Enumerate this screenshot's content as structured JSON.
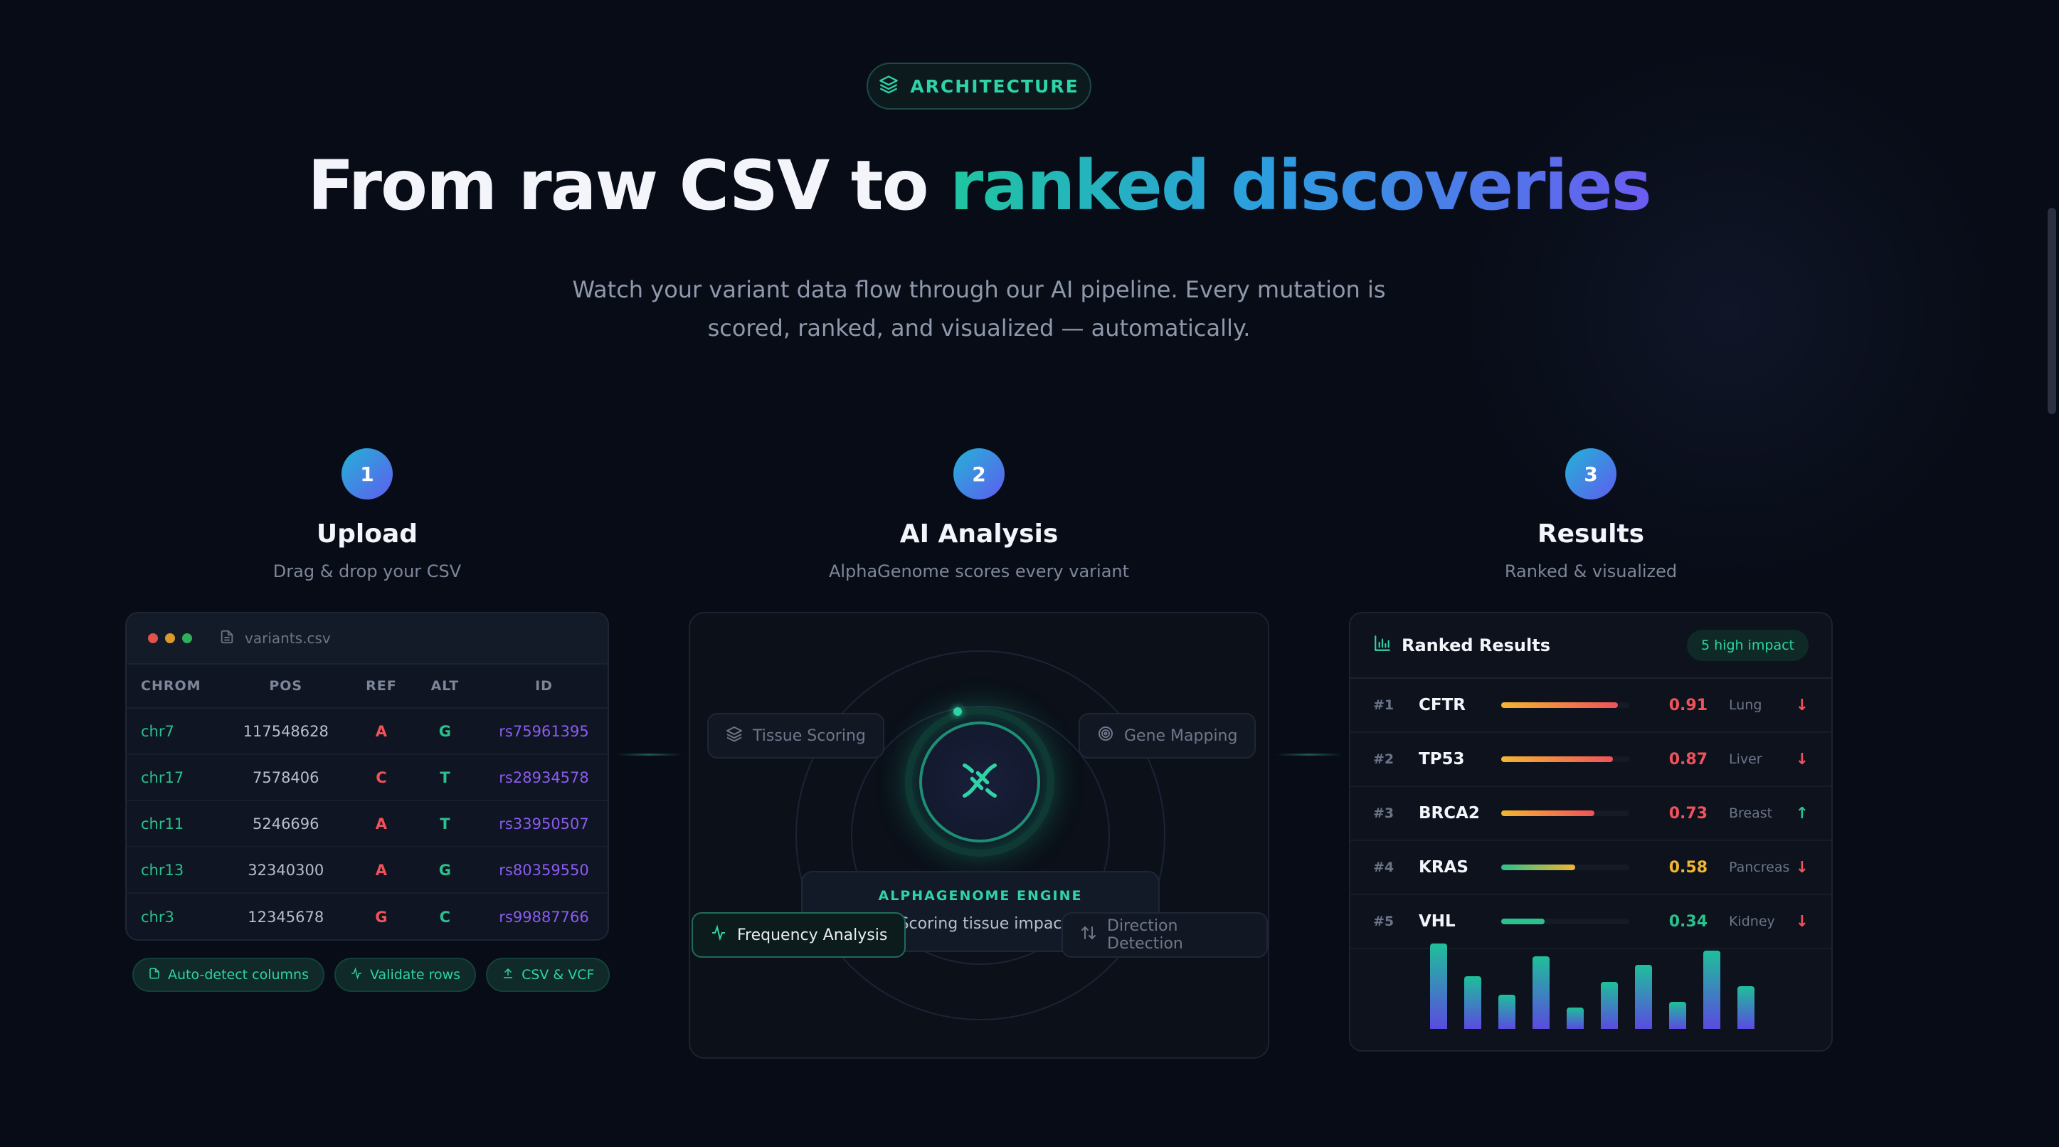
{
  "badge": {
    "icon": "layers-icon",
    "label": "ARCHITECTURE"
  },
  "hero": {
    "title_plain": "From raw CSV to",
    "title_highlight": "ranked discoveries",
    "subtitle_line1": "Watch your variant data flow through our AI pipeline. Every mutation is",
    "subtitle_line2": "scored, ranked, and visualized — automatically."
  },
  "steps": [
    {
      "number": "1",
      "title": "Upload",
      "subtitle": "Drag & drop your CSV"
    },
    {
      "number": "2",
      "title": "AI Analysis",
      "subtitle": "AlphaGenome scores every variant"
    },
    {
      "number": "3",
      "title": "Results",
      "subtitle": "Ranked & visualized"
    }
  ],
  "upload": {
    "filename": "variants.csv",
    "columns": [
      "CHROM",
      "POS",
      "REF",
      "ALT",
      "ID"
    ],
    "rows": [
      [
        "chr7",
        "117548628",
        "A",
        "G",
        "rs75961395"
      ],
      [
        "chr17",
        "7578406",
        "C",
        "T",
        "rs28934578"
      ],
      [
        "chr11",
        "5246696",
        "A",
        "T",
        "rs33950507"
      ],
      [
        "chr13",
        "32340300",
        "A",
        "G",
        "rs80359550"
      ],
      [
        "chr3",
        "12345678",
        "G",
        "C",
        "rs99887766"
      ]
    ],
    "chips": [
      "Auto-detect columns",
      "Validate rows",
      "CSV & VCF"
    ]
  },
  "analysis": {
    "engine_label": "ALPHAGENOME ENGINE",
    "engine_status": "Scoring tissue impac",
    "pills": {
      "tissue": "Tissue Scoring",
      "gene": "Gene Mapping",
      "frequency": "Frequency Analysis",
      "direction": "Direction Detection"
    }
  },
  "results": {
    "title": "Ranked Results",
    "badge": "5 high impact",
    "rows": [
      {
        "rank": "#1",
        "gene": "CFTR",
        "score": "0.91",
        "score_value": 0.91,
        "tissue": "Lung",
        "direction": "down",
        "color": "#f0525a"
      },
      {
        "rank": "#2",
        "gene": "TP53",
        "score": "0.87",
        "score_value": 0.87,
        "tissue": "Liver",
        "direction": "down",
        "color": "#f0525a"
      },
      {
        "rank": "#3",
        "gene": "BRCA2",
        "score": "0.73",
        "score_value": 0.73,
        "tissue": "Breast",
        "direction": "up",
        "color": "#f0525a"
      },
      {
        "rank": "#4",
        "gene": "KRAS",
        "score": "0.58",
        "score_value": 0.58,
        "tissue": "Pancreas",
        "direction": "down",
        "color": "#f2b632"
      },
      {
        "rank": "#5",
        "gene": "VHL",
        "score": "0.34",
        "score_value": 0.34,
        "tissue": "Kidney",
        "direction": "down",
        "color": "#2bc08d"
      }
    ],
    "histogram": [
      1.0,
      0.62,
      0.4,
      0.85,
      0.25,
      0.55,
      0.75,
      0.32,
      0.92,
      0.5
    ]
  },
  "colors": {
    "accent_teal": "#2ed3a6",
    "accent_purple": "#6b5cf0",
    "danger": "#f0525a",
    "warning": "#f2b632",
    "success": "#2bc08d"
  }
}
